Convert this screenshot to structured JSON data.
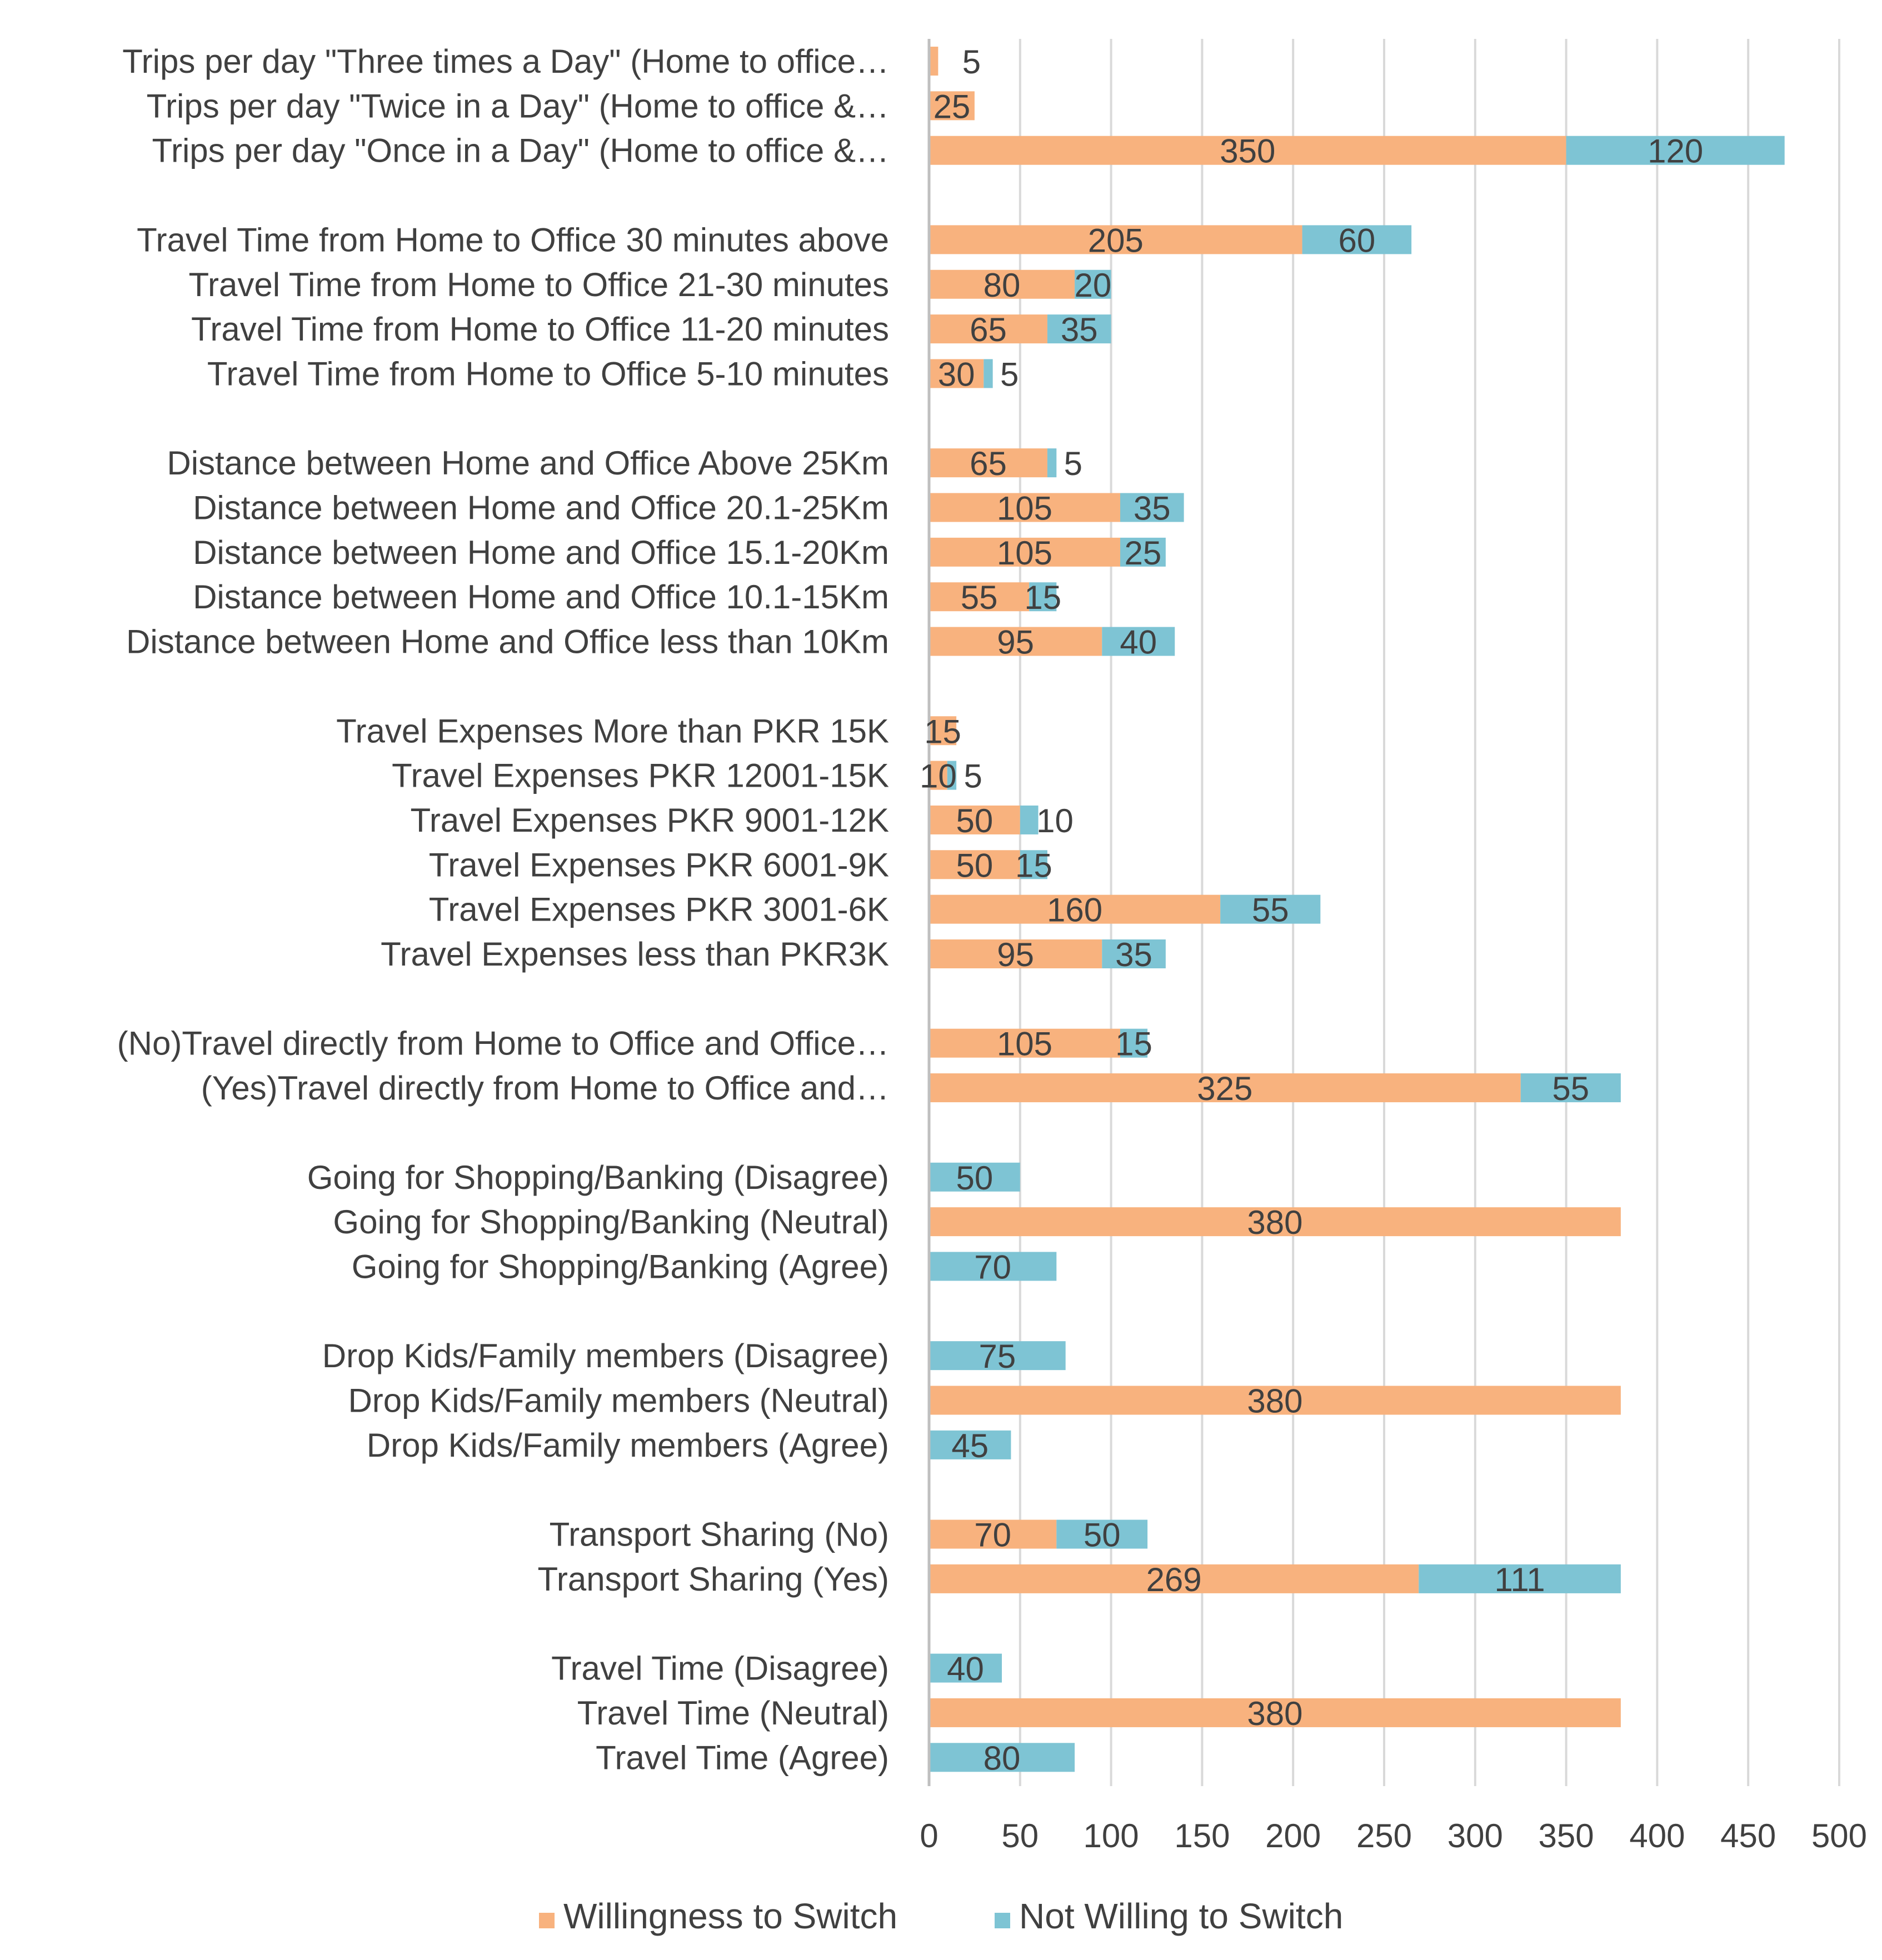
{
  "chart_data": {
    "type": "bar",
    "orientation": "horizontal",
    "stacked": true,
    "title": "",
    "xlabel": "",
    "ylabel": "",
    "xlim": [
      0,
      500
    ],
    "ticks": [
      0,
      50,
      100,
      150,
      200,
      250,
      300,
      350,
      400,
      450,
      500
    ],
    "ticks_text": [
      "0",
      "50",
      "100",
      "150",
      "200",
      "250",
      "300",
      "350",
      "400",
      "450",
      "500"
    ],
    "grid": true,
    "legend_position": "bottom",
    "series": [
      {
        "name": "Willingness to Switch",
        "color": "#f8b27e"
      },
      {
        "name": "Not Willing to Switch",
        "color": "#7ec4d4"
      }
    ],
    "groups": [
      {
        "rows": [
          {
            "label": "Trips per day  \"Three times a Day\" (Home to office…",
            "values": [
              5,
              null
            ],
            "labels": [
              "5",
              null
            ]
          },
          {
            "label": "Trips per day \"Twice in a Day\" (Home to office &…",
            "values": [
              25,
              null
            ],
            "labels": [
              "25",
              null
            ]
          },
          {
            "label": "Trips per day \"Once in a Day\" (Home to office &…",
            "values": [
              350,
              120
            ],
            "labels": [
              "350",
              "120"
            ]
          }
        ]
      },
      {
        "rows": [
          {
            "label": "Travel Time from Home to Office 30 minutes above",
            "values": [
              205,
              60
            ],
            "labels": [
              "205",
              "60"
            ]
          },
          {
            "label": "Travel Time from Home to Office 21-30 minutes",
            "values": [
              80,
              20
            ],
            "labels": [
              "80",
              "20"
            ]
          },
          {
            "label": "Travel Time from Home to Office 11-20 minutes",
            "values": [
              65,
              35
            ],
            "labels": [
              "65",
              "35"
            ]
          },
          {
            "label": "Travel Time from Home to Office 5-10 minutes",
            "values": [
              30,
              5
            ],
            "labels": [
              "30",
              "5"
            ]
          }
        ]
      },
      {
        "rows": [
          {
            "label": "Distance between Home and Office Above 25Km",
            "values": [
              65,
              5
            ],
            "labels": [
              "65",
              "5"
            ]
          },
          {
            "label": "Distance between Home and Office 20.1-25Km",
            "values": [
              105,
              35
            ],
            "labels": [
              "105",
              "35"
            ]
          },
          {
            "label": "Distance between Home and Office 15.1-20Km",
            "values": [
              105,
              25
            ],
            "labels": [
              "105",
              "25"
            ]
          },
          {
            "label": "Distance between Home and Office 10.1-15Km",
            "values": [
              55,
              15
            ],
            "labels": [
              "55",
              "15"
            ]
          },
          {
            "label": "Distance between Home and Office less than 10Km",
            "values": [
              95,
              40
            ],
            "labels": [
              "95",
              "40"
            ]
          }
        ]
      },
      {
        "rows": [
          {
            "label": "Travel Expenses More than PKR 15K",
            "values": [
              15,
              null
            ],
            "labels": [
              "15",
              null
            ]
          },
          {
            "label": "Travel Expenses PKR 12001-15K",
            "values": [
              10,
              5
            ],
            "labels": [
              "10",
              "5"
            ]
          },
          {
            "label": "Travel Expenses PKR 9001-12K",
            "values": [
              50,
              10
            ],
            "labels": [
              "50",
              "10"
            ]
          },
          {
            "label": "Travel Expenses PKR 6001-9K",
            "values": [
              50,
              15
            ],
            "labels": [
              "50",
              "15"
            ]
          },
          {
            "label": "Travel Expenses PKR 3001-6K",
            "values": [
              160,
              55
            ],
            "labels": [
              "160",
              "55"
            ]
          },
          {
            "label": "Travel Expenses less than PKR3K",
            "values": [
              95,
              35
            ],
            "labels": [
              "95",
              "35"
            ]
          }
        ]
      },
      {
        "rows": [
          {
            "label": "(No)Travel directly from Home to Office and Office…",
            "values": [
              105,
              15
            ],
            "labels": [
              "105",
              "15"
            ]
          },
          {
            "label": "(Yes)Travel directly from Home to Office and…",
            "values": [
              325,
              55
            ],
            "labels": [
              "325",
              "55"
            ]
          }
        ]
      },
      {
        "rows": [
          {
            "label": "Going for Shopping/Banking (Disagree)",
            "values": [
              null,
              50
            ],
            "labels": [
              null,
              "50"
            ]
          },
          {
            "label": "Going for Shopping/Banking (Neutral)",
            "values": [
              380,
              null
            ],
            "labels": [
              "380",
              null
            ]
          },
          {
            "label": "Going for Shopping/Banking (Agree)",
            "values": [
              null,
              70
            ],
            "labels": [
              null,
              "70"
            ]
          }
        ]
      },
      {
        "rows": [
          {
            "label": "Drop Kids/Family members (Disagree)",
            "values": [
              null,
              75
            ],
            "labels": [
              null,
              "75"
            ]
          },
          {
            "label": "Drop Kids/Family members (Neutral)",
            "values": [
              380,
              null
            ],
            "labels": [
              "380",
              null
            ]
          },
          {
            "label": "Drop Kids/Family members (Agree)",
            "values": [
              null,
              45
            ],
            "labels": [
              null,
              "45"
            ]
          }
        ]
      },
      {
        "rows": [
          {
            "label": "Transport Sharing (No)",
            "values": [
              70,
              50
            ],
            "labels": [
              "70",
              "50"
            ]
          },
          {
            "label": "Transport Sharing (Yes)",
            "values": [
              269,
              111
            ],
            "labels": [
              "269",
              "111"
            ]
          }
        ]
      },
      {
        "rows": [
          {
            "label": "Travel Time (Disagree)",
            "values": [
              null,
              40
            ],
            "labels": [
              null,
              "40"
            ]
          },
          {
            "label": "Travel Time (Neutral)",
            "values": [
              380,
              null
            ],
            "labels": [
              "380",
              null
            ]
          },
          {
            "label": "Travel Time (Agree)",
            "values": [
              null,
              80
            ],
            "labels": [
              null,
              "80"
            ]
          }
        ]
      }
    ]
  }
}
